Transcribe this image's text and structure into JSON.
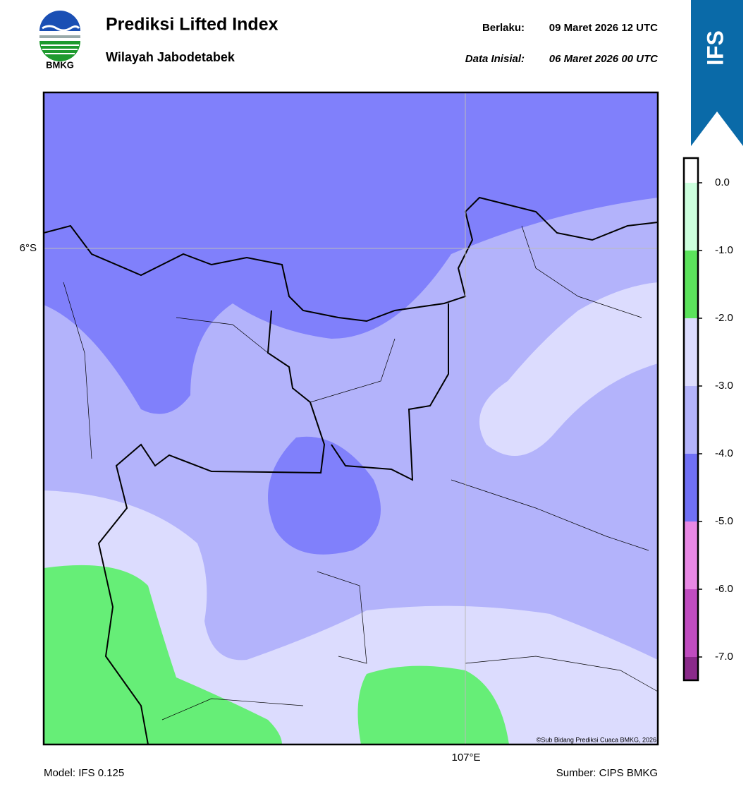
{
  "header": {
    "logo_text": "BMKG",
    "title": "Prediksi Lifted Index",
    "subtitle": "Wilayah Jabodetabek",
    "valid_label": "Berlaku:",
    "valid_time": "09 Maret 2026 12 UTC",
    "init_label": "Data Inisial:",
    "init_time": "06 Maret 2026 00 UTC"
  },
  "badge": "IFS",
  "map": {
    "lat_label": "6°S",
    "lon_label": "107°E",
    "credit": "©Sub Bidang Prediksi Cuaca BMKG, 2026"
  },
  "colorbar": {
    "ticks": [
      "0.0",
      "-1.0",
      "-2.0",
      "-3.0",
      "-4.0",
      "-5.0",
      "-6.0",
      "-7.0"
    ]
  },
  "footer": {
    "model": "Model: IFS 0.125",
    "source": "Sumber: CIPS BMKG"
  }
}
